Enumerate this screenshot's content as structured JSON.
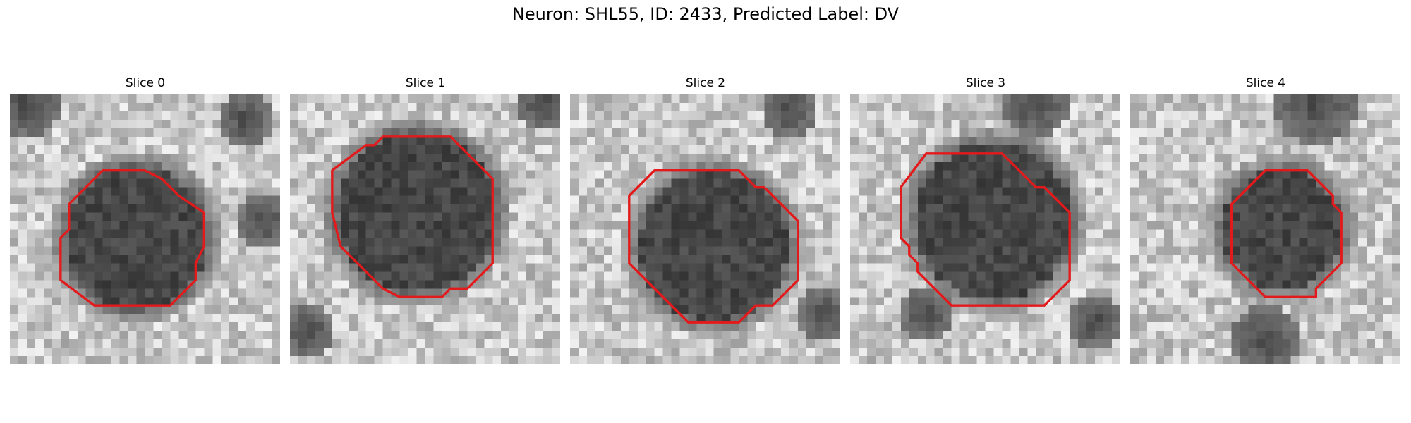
{
  "figure": {
    "title": "Neuron: SHL55, ID: 2433, Predicted Label: DV",
    "contour_color": "#e31a1c",
    "panels": [
      {
        "title": "Slice 0"
      },
      {
        "title": "Slice 1"
      },
      {
        "title": "Slice 2"
      },
      {
        "title": "Slice 3"
      },
      {
        "title": "Slice 4"
      }
    ]
  }
}
